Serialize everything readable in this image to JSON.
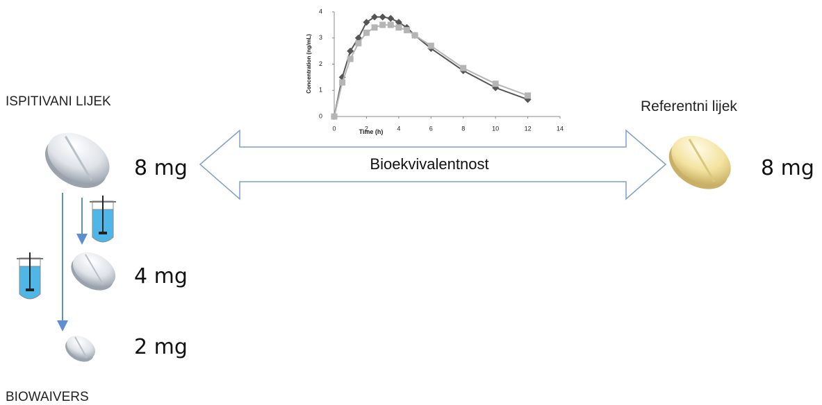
{
  "left": {
    "title": "ISPITIVANI LIJEK",
    "doses": [
      "8 mg",
      "4 mg",
      "2 mg"
    ],
    "footer": "BIOWAIVERS"
  },
  "right": {
    "title": "Referentni lijek",
    "dose": "8 mg"
  },
  "arrow": {
    "label": "Bioekvivalentnost"
  },
  "pk_chart": {
    "type": "line",
    "x_label": "Time (h)",
    "y_label": "Concentration (ng/mL)",
    "x": [
      0,
      0.5,
      1,
      1.5,
      2,
      2.5,
      3,
      3.5,
      4,
      4.5,
      5,
      6,
      8,
      10,
      12
    ],
    "series": [
      {
        "color": "#555555",
        "marker": "diamond",
        "values": [
          0,
          1.5,
          2.5,
          3.0,
          3.6,
          3.8,
          3.8,
          3.75,
          3.6,
          3.4,
          3.1,
          2.6,
          1.75,
          1.1,
          0.65
        ]
      },
      {
        "color": "#b5b5b5",
        "marker": "square",
        "values": [
          0,
          1.3,
          2.2,
          2.8,
          3.2,
          3.4,
          3.5,
          3.5,
          3.4,
          3.3,
          3.1,
          2.7,
          1.85,
          1.25,
          0.8
        ]
      }
    ],
    "xlim": [
      0,
      14
    ],
    "xticks": [
      0,
      2,
      4,
      6,
      8,
      10,
      12,
      14
    ],
    "ylim": [
      0,
      4
    ],
    "yticks": [
      0,
      1,
      2,
      3,
      4
    ]
  }
}
